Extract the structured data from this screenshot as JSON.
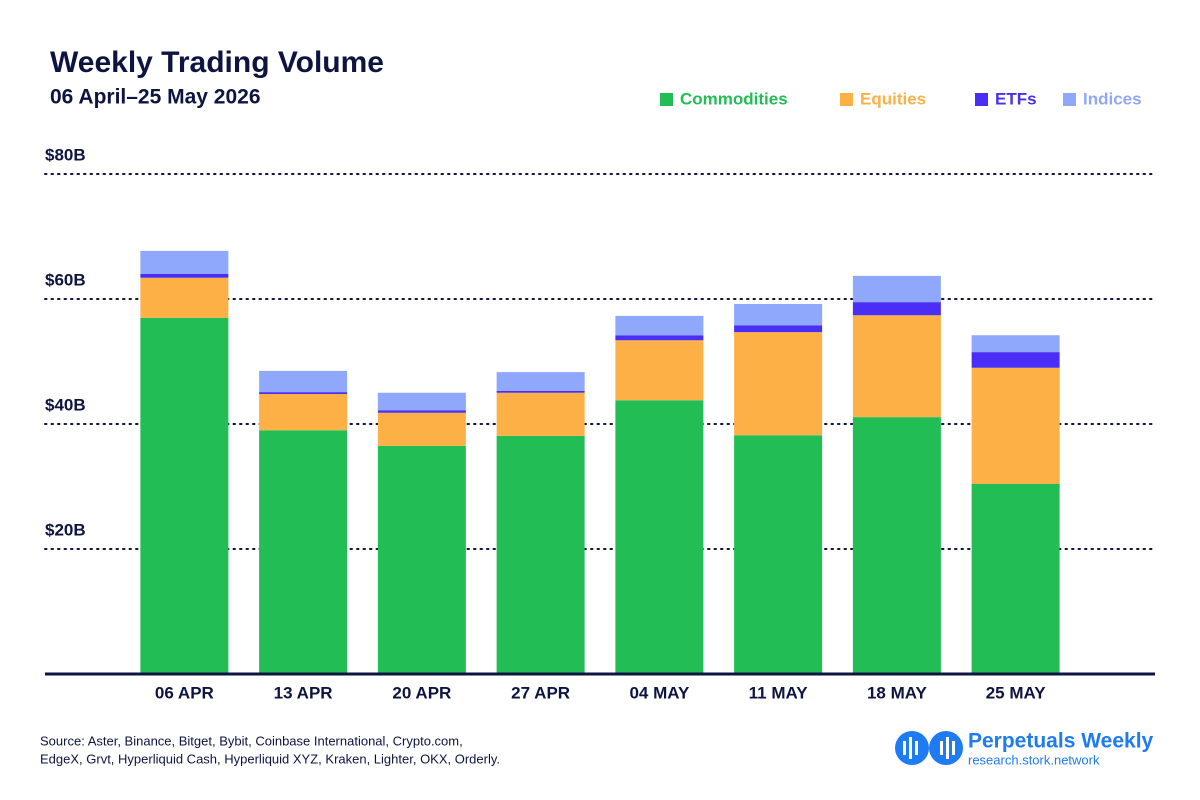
{
  "chart_data": {
    "type": "stacked_bar",
    "title": "Weekly Trading Volume",
    "subtitle": "06 April–25 May 2026",
    "categories": [
      "06 APR",
      "13 APR",
      "20 APR",
      "27 APR",
      "04 MAY",
      "11 MAY",
      "18 MAY",
      "25 MAY"
    ],
    "series": [
      {
        "name": "Commodities",
        "color": "#22bd55",
        "values": [
          57.0,
          39.0,
          36.5,
          38.1,
          43.8,
          38.2,
          41.1,
          30.4
        ]
      },
      {
        "name": "Equities",
        "color": "#fdb045",
        "values": [
          6.4,
          5.8,
          5.3,
          6.9,
          9.6,
          16.5,
          16.3,
          18.6
        ]
      },
      {
        "name": "ETFs",
        "color": "#4a2ef5",
        "values": [
          0.6,
          0.3,
          0.4,
          0.3,
          0.8,
          1.1,
          2.1,
          2.5
        ]
      },
      {
        "name": "Indices",
        "color": "#8fa8fb",
        "values": [
          3.7,
          3.4,
          2.8,
          3.0,
          3.1,
          3.4,
          4.2,
          2.7
        ]
      }
    ],
    "ylim": [
      0,
      80
    ],
    "yticks": [
      {
        "value": 20,
        "label": "$20B"
      },
      {
        "value": 40,
        "label": "$40B"
      },
      {
        "value": 60,
        "label": "$60B"
      },
      {
        "value": 80,
        "label": "$80B"
      }
    ],
    "grid": true,
    "legend_position": "top-right",
    "source": [
      "Source: Aster, Binance, Bitget, Bybit, Coinbase International, Crypto.com,",
      "EdgeX, Grvt, Hyperliquid Cash, Hyperliquid XYZ, Kraken, Lighter, OKX, Orderly."
    ],
    "brand": "Perpetuals Weekly",
    "brand_url": "research.stork.network"
  }
}
